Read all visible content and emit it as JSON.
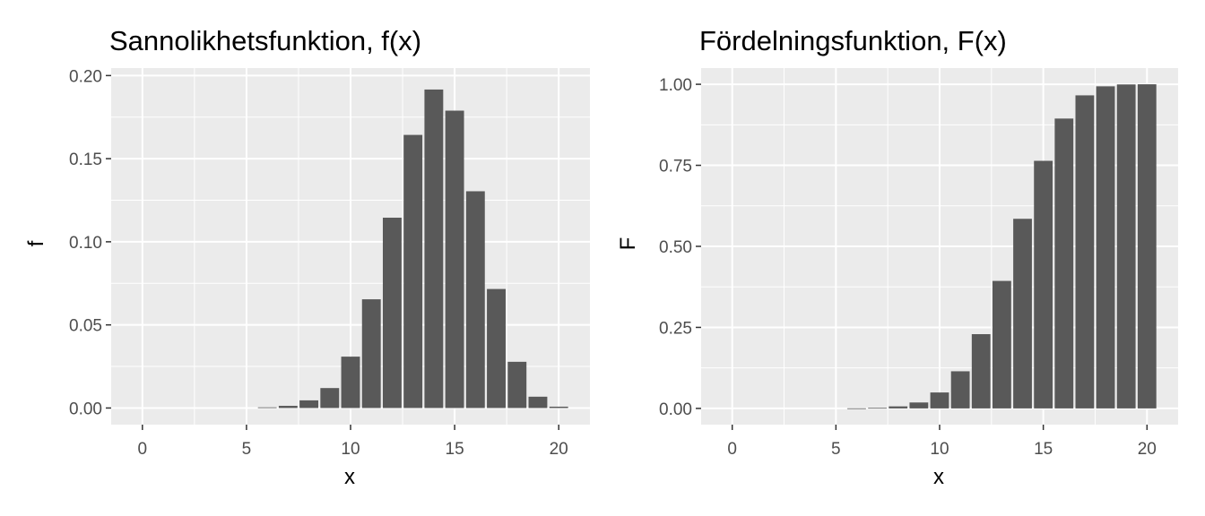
{
  "chart_data": [
    {
      "type": "bar",
      "title": "Sannolikhetsfunktion, f(x)",
      "xlabel": "x",
      "ylabel": "f",
      "x": [
        0,
        1,
        2,
        3,
        4,
        5,
        6,
        7,
        8,
        9,
        10,
        11,
        12,
        13,
        14,
        15,
        16,
        17,
        18,
        19,
        20
      ],
      "values": [
        0,
        0,
        0,
        0,
        0,
        0,
        0.0004,
        0.0013,
        0.0046,
        0.012,
        0.0309,
        0.0654,
        0.1145,
        0.1643,
        0.1916,
        0.1789,
        0.1304,
        0.0716,
        0.0278,
        0.0068,
        0.0008
      ],
      "xlim": [
        -1.5,
        21.5
      ],
      "ylim": [
        -0.01,
        0.2045
      ],
      "xticks": [
        0,
        5,
        10,
        15,
        20
      ],
      "xtick_labels": [
        "0",
        "5",
        "10",
        "15",
        "20"
      ],
      "yticks": [
        0,
        0.05,
        0.1,
        0.15,
        0.2
      ],
      "ytick_labels": [
        "0.00",
        "0.05",
        "0.10",
        "0.15",
        "0.20"
      ],
      "grid": true
    },
    {
      "type": "bar",
      "title": "Fördelningsfunktion, F(x)",
      "xlabel": "x",
      "ylabel": "F",
      "x": [
        0,
        1,
        2,
        3,
        4,
        5,
        6,
        7,
        8,
        9,
        10,
        11,
        12,
        13,
        14,
        15,
        16,
        17,
        18,
        19,
        20
      ],
      "values": [
        0,
        0,
        0,
        0,
        0,
        0,
        0.0004,
        0.0017,
        0.0063,
        0.0183,
        0.0492,
        0.1146,
        0.2291,
        0.3934,
        0.585,
        0.7639,
        0.8943,
        0.9659,
        0.9937,
        0.9995,
        1.0
      ],
      "xlim": [
        -1.5,
        21.5
      ],
      "ylim": [
        -0.05,
        1.05
      ],
      "xticks": [
        0,
        5,
        10,
        15,
        20
      ],
      "xtick_labels": [
        "0",
        "5",
        "10",
        "15",
        "20"
      ],
      "yticks": [
        0,
        0.25,
        0.5,
        0.75,
        1.0
      ],
      "ytick_labels": [
        "0.00",
        "0.25",
        "0.50",
        "0.75",
        "1.00"
      ],
      "grid": true
    }
  ]
}
